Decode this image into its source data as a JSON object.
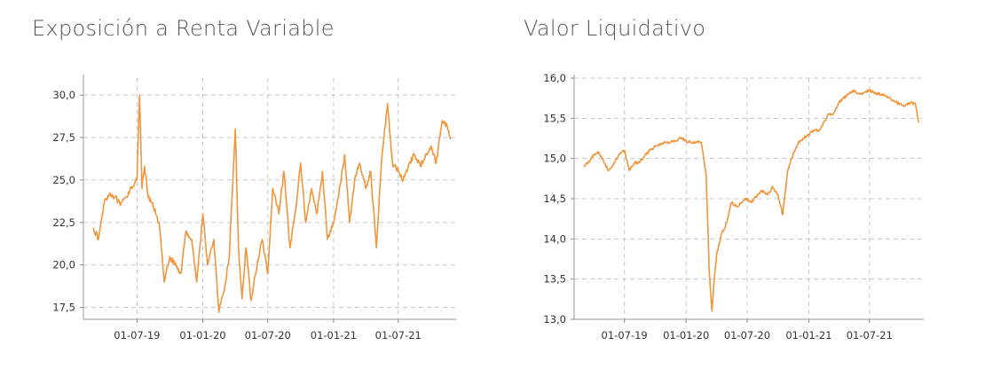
{
  "charts": [
    {
      "title": "Exposición a Renta Variable",
      "yticks": [
        "17,5",
        "20,0",
        "22,5",
        "25,0",
        "27,5",
        "30,0"
      ],
      "xticks": [
        "01-07-19",
        "01-01-20",
        "01-07-20",
        "01-01-21",
        "01-07-21"
      ]
    },
    {
      "title": "Valor Liquidativo",
      "yticks": [
        "13,0",
        "13,5",
        "14,0",
        "14,5",
        "15,0",
        "15,5",
        "16,0"
      ],
      "xticks": [
        "01-07-19",
        "01-01-20",
        "01-07-20",
        "01-01-21",
        "01-07-21"
      ]
    }
  ],
  "chart_data": [
    {
      "type": "line",
      "title": "Exposición a Renta Variable",
      "xlabel": "",
      "ylabel": "",
      "ylim": [
        16.8,
        31.0
      ],
      "xlim": [
        "2019-02-01",
        "2021-12-10"
      ],
      "grid": true,
      "color": "#f0963c",
      "x": [
        "2019-03-01",
        "2019-03-15",
        "2019-04-01",
        "2019-04-15",
        "2019-05-01",
        "2019-05-15",
        "2019-06-01",
        "2019-06-15",
        "2019-07-01",
        "2019-07-08",
        "2019-07-15",
        "2019-07-22",
        "2019-08-01",
        "2019-08-15",
        "2019-09-01",
        "2019-09-15",
        "2019-10-01",
        "2019-10-15",
        "2019-11-01",
        "2019-11-15",
        "2019-12-01",
        "2019-12-15",
        "2020-01-01",
        "2020-01-15",
        "2020-02-01",
        "2020-02-15",
        "2020-03-01",
        "2020-03-15",
        "2020-04-01",
        "2020-04-10",
        "2020-04-20",
        "2020-05-01",
        "2020-05-15",
        "2020-06-01",
        "2020-06-15",
        "2020-07-01",
        "2020-07-15",
        "2020-08-01",
        "2020-08-15",
        "2020-09-01",
        "2020-09-15",
        "2020-10-01",
        "2020-10-15",
        "2020-11-01",
        "2020-11-15",
        "2020-12-01",
        "2020-12-15",
        "2021-01-01",
        "2021-01-15",
        "2021-02-01",
        "2021-02-15",
        "2021-03-01",
        "2021-03-15",
        "2021-04-01",
        "2021-04-15",
        "2021-05-01",
        "2021-05-15",
        "2021-06-01",
        "2021-06-15",
        "2021-07-01",
        "2021-07-15",
        "2021-08-01",
        "2021-08-15",
        "2021-09-01",
        "2021-09-15",
        "2021-10-01",
        "2021-10-15",
        "2021-11-01",
        "2021-11-15",
        "2021-11-25"
      ],
      "values": [
        22.2,
        21.5,
        23.8,
        24.2,
        24.0,
        23.5,
        24.0,
        24.6,
        25.0,
        30.0,
        24.5,
        25.8,
        24.0,
        23.5,
        22.5,
        19.0,
        20.5,
        20.0,
        19.5,
        22.0,
        21.5,
        19.0,
        23.0,
        20.0,
        21.5,
        17.2,
        18.5,
        20.5,
        28.0,
        21.0,
        18.0,
        21.0,
        17.9,
        20.0,
        21.5,
        19.5,
        24.5,
        23.0,
        25.5,
        21.0,
        23.0,
        26.0,
        22.5,
        24.5,
        23.0,
        25.5,
        21.5,
        22.5,
        24.0,
        26.5,
        22.5,
        25.0,
        26.0,
        24.5,
        25.5,
        21.0,
        26.0,
        29.5,
        26.0,
        25.5,
        25.0,
        26.0,
        26.5,
        25.8,
        26.5,
        27.0,
        26.0,
        28.5,
        28.2,
        27.4
      ]
    },
    {
      "type": "line",
      "title": "Valor Liquidativo",
      "xlabel": "",
      "ylabel": "",
      "ylim": [
        13.0,
        16.0
      ],
      "xlim": [
        "2019-02-01",
        "2021-12-10"
      ],
      "grid": true,
      "color": "#f0963c",
      "x": [
        "2019-03-01",
        "2019-03-15",
        "2019-04-01",
        "2019-04-15",
        "2019-05-01",
        "2019-05-15",
        "2019-06-01",
        "2019-06-15",
        "2019-07-01",
        "2019-07-15",
        "2019-08-01",
        "2019-08-15",
        "2019-09-01",
        "2019-09-15",
        "2019-10-01",
        "2019-10-15",
        "2019-11-01",
        "2019-11-15",
        "2019-12-01",
        "2019-12-15",
        "2020-01-01",
        "2020-01-15",
        "2020-02-01",
        "2020-02-15",
        "2020-03-01",
        "2020-03-10",
        "2020-03-18",
        "2020-03-25",
        "2020-04-01",
        "2020-04-15",
        "2020-05-01",
        "2020-05-15",
        "2020-06-01",
        "2020-06-15",
        "2020-07-01",
        "2020-07-15",
        "2020-08-01",
        "2020-08-15",
        "2020-09-01",
        "2020-09-15",
        "2020-10-01",
        "2020-10-15",
        "2020-10-30",
        "2020-11-10",
        "2020-12-01",
        "2020-12-15",
        "2021-01-01",
        "2021-01-15",
        "2021-02-01",
        "2021-02-15",
        "2021-03-01",
        "2021-03-15",
        "2021-04-01",
        "2021-04-15",
        "2021-05-01",
        "2021-05-15",
        "2021-06-01",
        "2021-06-15",
        "2021-07-01",
        "2021-07-15",
        "2021-08-01",
        "2021-08-15",
        "2021-09-01",
        "2021-09-15",
        "2021-10-01",
        "2021-10-15",
        "2021-11-01",
        "2021-11-15",
        "2021-11-25"
      ],
      "values": [
        14.9,
        14.95,
        15.05,
        15.08,
        14.95,
        14.85,
        14.95,
        15.05,
        15.1,
        14.85,
        14.95,
        14.95,
        15.05,
        15.1,
        15.15,
        15.18,
        15.2,
        15.2,
        15.22,
        15.25,
        15.22,
        15.2,
        15.2,
        15.2,
        14.8,
        13.6,
        13.1,
        13.5,
        13.8,
        14.05,
        14.2,
        14.45,
        14.4,
        14.45,
        14.5,
        14.45,
        14.55,
        14.6,
        14.55,
        14.65,
        14.55,
        14.3,
        14.85,
        15.0,
        15.2,
        15.25,
        15.3,
        15.35,
        15.35,
        15.45,
        15.55,
        15.55,
        15.7,
        15.75,
        15.8,
        15.85,
        15.8,
        15.82,
        15.85,
        15.82,
        15.8,
        15.78,
        15.75,
        15.7,
        15.68,
        15.65,
        15.7,
        15.68,
        15.45
      ]
    }
  ]
}
